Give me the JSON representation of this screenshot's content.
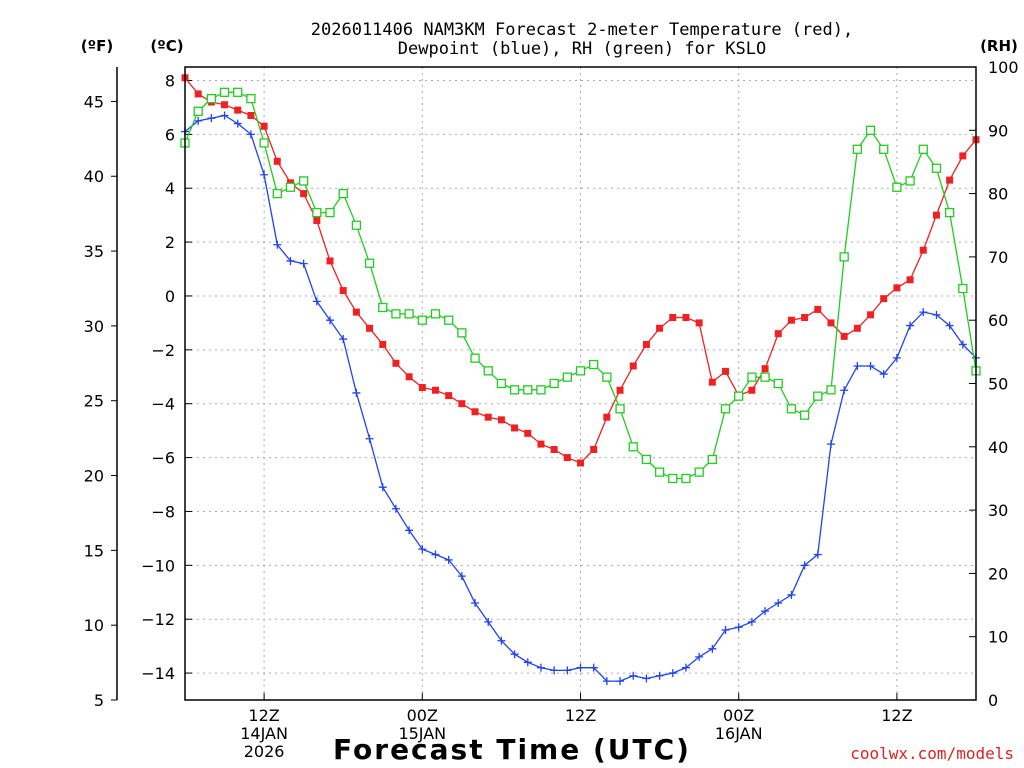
{
  "chart_data": {
    "type": "line",
    "title_line1": "2026011406 NAM3KM Forecast 2-meter Temperature (red),",
    "title_line2": "Dewpoint (blue), RH (green) for KSLO",
    "xlabel": "Forecast Time (UTC)",
    "unit_f": "(ºF)",
    "unit_c": "(ºC)",
    "unit_rh": "(RH)",
    "credit": "coolwx.com/models",
    "hours": [
      0,
      1,
      2,
      3,
      4,
      5,
      6,
      7,
      8,
      9,
      10,
      11,
      12,
      13,
      14,
      15,
      16,
      17,
      18,
      19,
      20,
      21,
      22,
      23,
      24,
      25,
      26,
      27,
      28,
      29,
      30,
      31,
      32,
      33,
      34,
      35,
      36,
      37,
      38,
      39,
      40,
      41,
      42,
      43,
      44,
      45,
      46,
      47,
      48,
      49,
      50,
      51,
      52,
      53,
      54,
      55,
      56,
      57,
      58,
      59,
      60
    ],
    "x_ticks": [
      {
        "hour": 6,
        "line1": "12Z",
        "line2": "14JAN",
        "line3": "2026"
      },
      {
        "hour": 18,
        "line1": "00Z",
        "line2": "15JAN",
        "line3": ""
      },
      {
        "hour": 30,
        "line1": "12Z",
        "line2": "",
        "line3": ""
      },
      {
        "hour": 42,
        "line1": "00Z",
        "line2": "16JAN",
        "line3": ""
      },
      {
        "hour": 54,
        "line1": "12Z",
        "line2": "",
        "line3": ""
      }
    ],
    "xlim": [
      0,
      60
    ],
    "ylim_c": [
      -15,
      8.5
    ],
    "ylim_rh": [
      0,
      100
    ],
    "c_ticks": [
      "8",
      "6",
      "4",
      "2",
      "0",
      "−2",
      "−4",
      "−6",
      "−8",
      "−10",
      "−12",
      "−14"
    ],
    "c_tick_values": [
      8,
      6,
      4,
      2,
      0,
      -2,
      -4,
      -6,
      -8,
      -10,
      -12,
      -14
    ],
    "f_ticks": [
      "45",
      "40",
      "35",
      "30",
      "25",
      "20",
      "15",
      "10",
      "5"
    ],
    "f_tick_values": [
      45,
      40,
      35,
      30,
      25,
      20,
      15,
      10,
      5
    ],
    "rh_ticks": [
      "100",
      "90",
      "80",
      "70",
      "60",
      "50",
      "40",
      "30",
      "20",
      "10",
      "0"
    ],
    "rh_tick_values": [
      100,
      90,
      80,
      70,
      60,
      50,
      40,
      30,
      20,
      10,
      0
    ],
    "series": [
      {
        "name": "Temperature",
        "unit": "C",
        "color": "#ee2222",
        "marker": "filled-square",
        "values": [
          8.1,
          7.5,
          7.2,
          7.1,
          6.9,
          6.7,
          6.3,
          5.0,
          4.2,
          3.8,
          2.8,
          1.3,
          0.2,
          -0.6,
          -1.2,
          -1.8,
          -2.5,
          -3.0,
          -3.4,
          -3.5,
          -3.7,
          -4.0,
          -4.3,
          -4.5,
          -4.6,
          -4.9,
          -5.1,
          -5.5,
          -5.7,
          -6.0,
          -6.2,
          -5.7,
          -4.5,
          -3.5,
          -2.6,
          -1.8,
          -1.2,
          -0.8,
          -0.8,
          -1.0,
          -3.2,
          -2.8,
          -3.7,
          -3.5,
          -2.7,
          -1.4,
          -0.9,
          -0.8,
          -0.5,
          -1.0,
          -1.5,
          -1.2,
          -0.7,
          -0.1,
          0.3,
          0.6,
          1.7,
          3.0,
          4.3,
          5.2,
          5.8
        ]
      },
      {
        "name": "Dewpoint",
        "unit": "C",
        "color": "#2244ee",
        "marker": "plus",
        "values": [
          6.1,
          6.5,
          6.6,
          6.7,
          6.4,
          6.0,
          4.5,
          1.9,
          1.3,
          1.2,
          -0.2,
          -0.9,
          -1.6,
          -3.6,
          -5.3,
          -7.1,
          -7.9,
          -8.7,
          -9.4,
          -9.6,
          -9.8,
          -10.4,
          -11.4,
          -12.1,
          -12.8,
          -13.3,
          -13.6,
          -13.8,
          -13.9,
          -13.9,
          -13.8,
          -13.8,
          -14.3,
          -14.3,
          -14.1,
          -14.2,
          -14.1,
          -14.0,
          -13.8,
          -13.4,
          -13.1,
          -12.4,
          -12.3,
          -12.1,
          -11.7,
          -11.4,
          -11.1,
          -10.0,
          -9.6,
          -5.5,
          -3.5,
          -2.6,
          -2.6,
          -2.9,
          -2.3,
          -1.1,
          -0.6,
          -0.7,
          -1.1,
          -1.8,
          -2.3
        ]
      },
      {
        "name": "RH",
        "unit": "%",
        "color": "#22cc22",
        "marker": "open-square",
        "values": [
          88,
          93,
          95,
          96,
          96,
          95,
          88,
          80,
          81,
          82,
          77,
          77,
          80,
          75,
          69,
          62,
          61,
          61,
          60,
          61,
          60,
          58,
          54,
          52,
          50,
          49,
          49,
          49,
          50,
          51,
          52,
          53,
          51,
          46,
          40,
          38,
          36,
          35,
          35,
          36,
          38,
          46,
          48,
          51,
          51,
          50,
          46,
          45,
          48,
          49,
          70,
          87,
          90,
          87,
          81,
          82,
          87,
          84,
          77,
          65,
          52
        ]
      }
    ]
  }
}
